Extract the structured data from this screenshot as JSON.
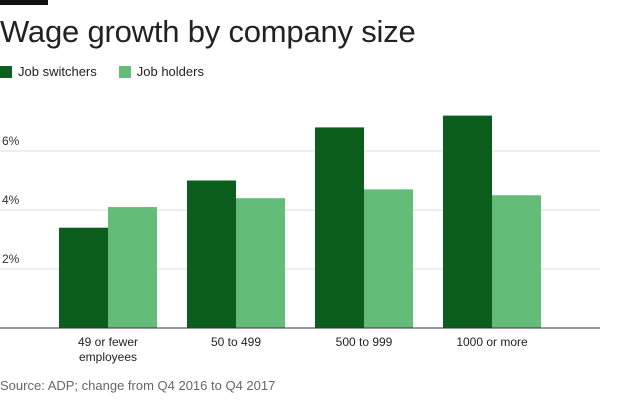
{
  "title": "Wage growth by company size",
  "source": "Source: ADP; change from Q4 2016 to Q4 2017",
  "colors": {
    "switchers": "#0b5e1c",
    "holders": "#63bd78",
    "grid": "#dddddd",
    "axis": "#333333"
  },
  "chart_data": {
    "type": "bar",
    "title": "Wage growth by company size",
    "categories": [
      [
        "49 or fewer",
        "employees"
      ],
      [
        "50 to 499"
      ],
      [
        "500 to 999"
      ],
      [
        "1000 or more"
      ]
    ],
    "series": [
      {
        "name": "Job switchers",
        "values": [
          3.4,
          5.0,
          6.8,
          7.2
        ]
      },
      {
        "name": "Job holders",
        "values": [
          4.1,
          4.4,
          4.7,
          4.5
        ]
      }
    ],
    "ylim": [
      0,
      8
    ],
    "yticks": [
      2,
      4,
      6
    ],
    "ytick_labels": [
      "2%",
      "4%",
      "6%"
    ],
    "grid": true,
    "legend": "top-left"
  }
}
